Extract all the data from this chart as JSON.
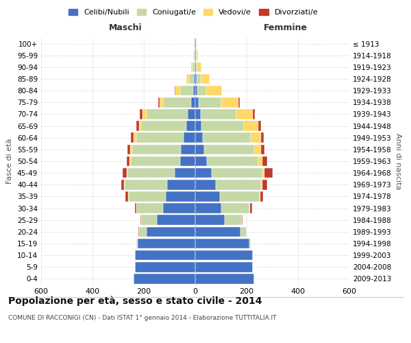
{
  "age_groups": [
    "0-4",
    "5-9",
    "10-14",
    "15-19",
    "20-24",
    "25-29",
    "30-34",
    "35-39",
    "40-44",
    "45-49",
    "50-54",
    "55-59",
    "60-64",
    "65-69",
    "70-74",
    "75-79",
    "80-84",
    "85-89",
    "90-94",
    "95-99",
    "100+"
  ],
  "birth_years": [
    "2009-2013",
    "2004-2008",
    "1999-2003",
    "1994-1998",
    "1989-1993",
    "1984-1988",
    "1979-1983",
    "1974-1978",
    "1969-1973",
    "1964-1968",
    "1959-1963",
    "1954-1958",
    "1949-1953",
    "1944-1948",
    "1939-1943",
    "1934-1938",
    "1929-1933",
    "1924-1928",
    "1919-1923",
    "1914-1918",
    "≤ 1913"
  ],
  "male": {
    "celibi": [
      240,
      235,
      235,
      225,
      190,
      150,
      125,
      115,
      110,
      80,
      60,
      55,
      45,
      35,
      30,
      15,
      8,
      5,
      3,
      2,
      2
    ],
    "coniugati": [
      0,
      0,
      0,
      5,
      30,
      60,
      105,
      145,
      165,
      185,
      190,
      190,
      185,
      175,
      160,
      110,
      50,
      20,
      8,
      3,
      2
    ],
    "vedovi": [
      0,
      0,
      0,
      0,
      0,
      0,
      0,
      1,
      2,
      3,
      5,
      8,
      10,
      10,
      15,
      15,
      20,
      10,
      5,
      2,
      1
    ],
    "divorziati": [
      0,
      0,
      0,
      0,
      1,
      3,
      5,
      10,
      12,
      15,
      12,
      12,
      10,
      10,
      10,
      5,
      2,
      0,
      0,
      0,
      0
    ]
  },
  "female": {
    "nubili": [
      230,
      225,
      225,
      210,
      175,
      115,
      100,
      95,
      80,
      65,
      45,
      35,
      30,
      25,
      20,
      12,
      8,
      5,
      3,
      2,
      2
    ],
    "coniugate": [
      0,
      0,
      0,
      5,
      25,
      65,
      110,
      155,
      175,
      195,
      200,
      195,
      185,
      165,
      140,
      90,
      35,
      15,
      6,
      3,
      2
    ],
    "vedove": [
      0,
      0,
      0,
      0,
      0,
      1,
      2,
      3,
      5,
      10,
      15,
      25,
      40,
      55,
      65,
      65,
      60,
      35,
      15,
      5,
      2
    ],
    "divorziate": [
      0,
      0,
      0,
      0,
      1,
      3,
      8,
      12,
      20,
      30,
      20,
      15,
      12,
      10,
      8,
      5,
      2,
      0,
      0,
      0,
      0
    ]
  },
  "colors": {
    "celibi": "#4472C4",
    "coniugati": "#C5D9A8",
    "vedovi": "#FFD966",
    "divorziati": "#C0392B"
  },
  "legend_labels": [
    "Celibi/Nubili",
    "Coniugati/e",
    "Vedovi/e",
    "Divorziati/e"
  ],
  "title": "Popolazione per età, sesso e stato civile - 2014",
  "subtitle": "COMUNE DI RACCONIGI (CN) - Dati ISTAT 1° gennaio 2014 - Elaborazione TUTTITALIA.IT",
  "xlabel_left": "Maschi",
  "xlabel_right": "Femmine",
  "ylabel_left": "Fasce di età",
  "ylabel_right": "Anni di nascita",
  "xlim": 600,
  "bg_color": "#FFFFFF",
  "grid_color": "#CCCCCC"
}
